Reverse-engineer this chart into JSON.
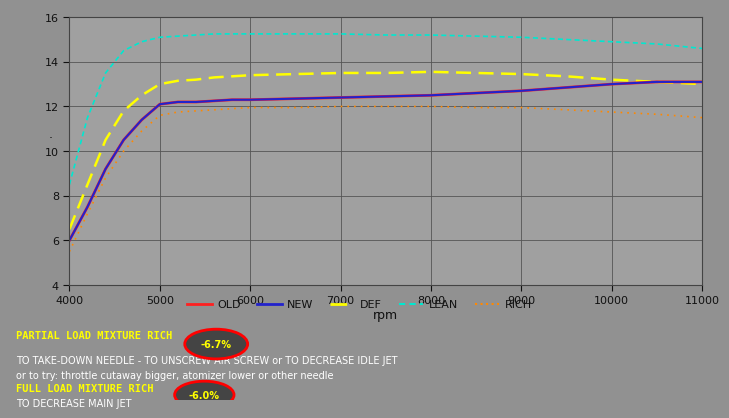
{
  "rpm": [
    4000,
    4200,
    4400,
    4600,
    4800,
    5000,
    5200,
    5400,
    5600,
    5800,
    6000,
    6500,
    7000,
    7500,
    8000,
    8500,
    9000,
    9500,
    10000,
    10500,
    11000
  ],
  "old": [
    6.0,
    7.5,
    9.2,
    10.5,
    11.4,
    12.1,
    12.2,
    12.2,
    12.25,
    12.3,
    12.3,
    12.35,
    12.4,
    12.45,
    12.5,
    12.6,
    12.7,
    12.85,
    13.0,
    13.1,
    13.1
  ],
  "new": [
    6.0,
    7.5,
    9.2,
    10.5,
    11.4,
    12.1,
    12.2,
    12.2,
    12.25,
    12.3,
    12.3,
    12.35,
    12.4,
    12.45,
    12.5,
    12.6,
    12.7,
    12.85,
    13.0,
    13.1,
    13.1
  ],
  "def": [
    6.5,
    8.5,
    10.5,
    11.8,
    12.5,
    13.0,
    13.15,
    13.2,
    13.3,
    13.35,
    13.4,
    13.45,
    13.5,
    13.5,
    13.55,
    13.5,
    13.45,
    13.35,
    13.2,
    13.1,
    13.0
  ],
  "lean": [
    8.5,
    11.5,
    13.5,
    14.5,
    14.9,
    15.1,
    15.15,
    15.2,
    15.25,
    15.25,
    15.25,
    15.25,
    15.25,
    15.2,
    15.2,
    15.15,
    15.1,
    15.0,
    14.9,
    14.8,
    14.6
  ],
  "rich": [
    5.5,
    7.2,
    8.8,
    10.0,
    10.9,
    11.6,
    11.75,
    11.8,
    11.85,
    11.9,
    11.95,
    11.95,
    12.0,
    12.0,
    12.0,
    11.95,
    11.95,
    11.85,
    11.75,
    11.65,
    11.5
  ],
  "bg_color": "#919191",
  "plot_bg": "#a0a0a0",
  "xlabel": "rpm",
  "ylim": [
    4,
    16
  ],
  "xlim": [
    4000,
    11000
  ],
  "yticks": [
    4,
    6,
    8,
    10,
    12,
    14,
    16
  ],
  "xticks": [
    4000,
    5000,
    6000,
    7000,
    8000,
    9000,
    10000,
    11000
  ],
  "old_color": "#ff2020",
  "new_color": "#2222cc",
  "def_color": "#ffff00",
  "lean_color": "#00e8d0",
  "rich_color": "#ff8800",
  "text_yellow": "#ffff00",
  "text_white": "#ffffff",
  "text_black": "#111111",
  "legend_bg": "#919191",
  "bottom_bg": "#777777",
  "border_color": "#3333aa",
  "annotation_text1": "PARTIAL LOAD MIXTURE RICH",
  "annotation_value1": "-6.7%",
  "annotation_text2": "TO TAKE-DOWN NEEDLE - TO UNSCREW AIR SCREW or TO DECREASE IDLE JET",
  "annotation_text3": "or to try: throttle cutaway bigger, atomizer lower or other needle",
  "annotation_text4": "FULL LOAD MIXTURE RICH",
  "annotation_value2": "-6.0%",
  "annotation_text5": "TO DECREASE MAIN JET",
  "dot_marker": "·"
}
